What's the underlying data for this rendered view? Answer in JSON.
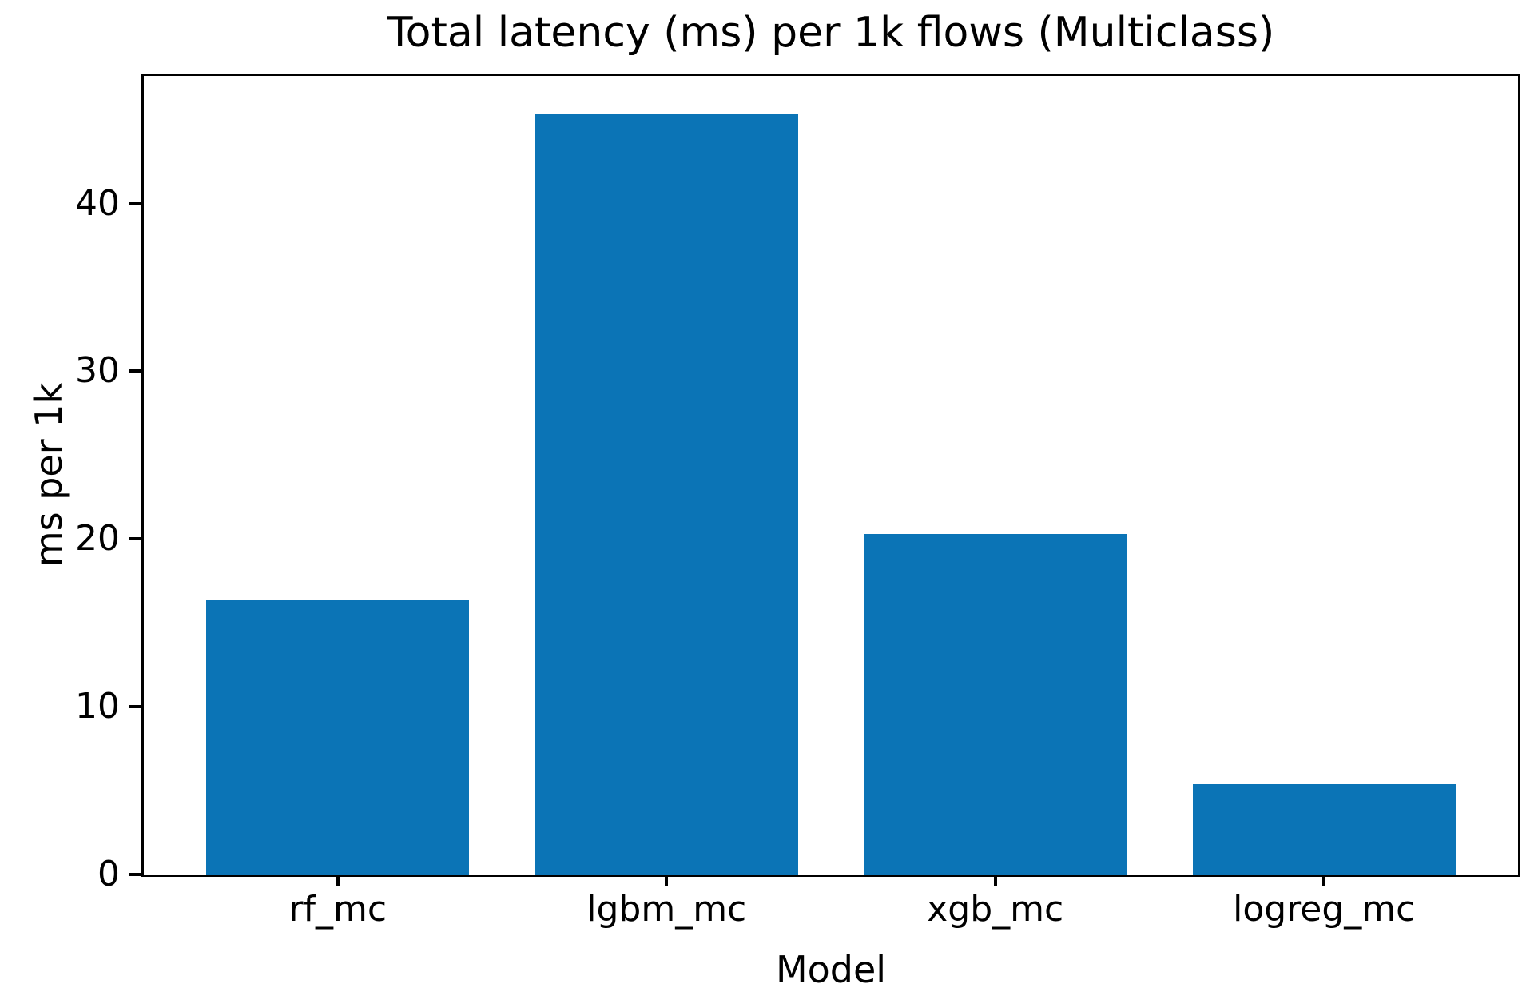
{
  "chart_data": {
    "type": "bar",
    "title": "Total latency (ms) per 1k flows (Multiclass)",
    "xlabel": "Model",
    "ylabel": "ms per 1k",
    "categories": [
      "rf_mc",
      "lgbm_mc",
      "xgb_mc",
      "logreg_mc"
    ],
    "values": [
      16.4,
      45.3,
      20.3,
      5.4
    ],
    "yticks": [
      0,
      10,
      20,
      30,
      40
    ],
    "ylim": [
      0,
      47.6
    ],
    "bar_color": "#0b74b6",
    "axis_color": "#000000",
    "background_color": "#ffffff",
    "grid": false,
    "legend_position": "none",
    "bar_width_frac": 0.8,
    "x_margin_frac": 0.19
  }
}
